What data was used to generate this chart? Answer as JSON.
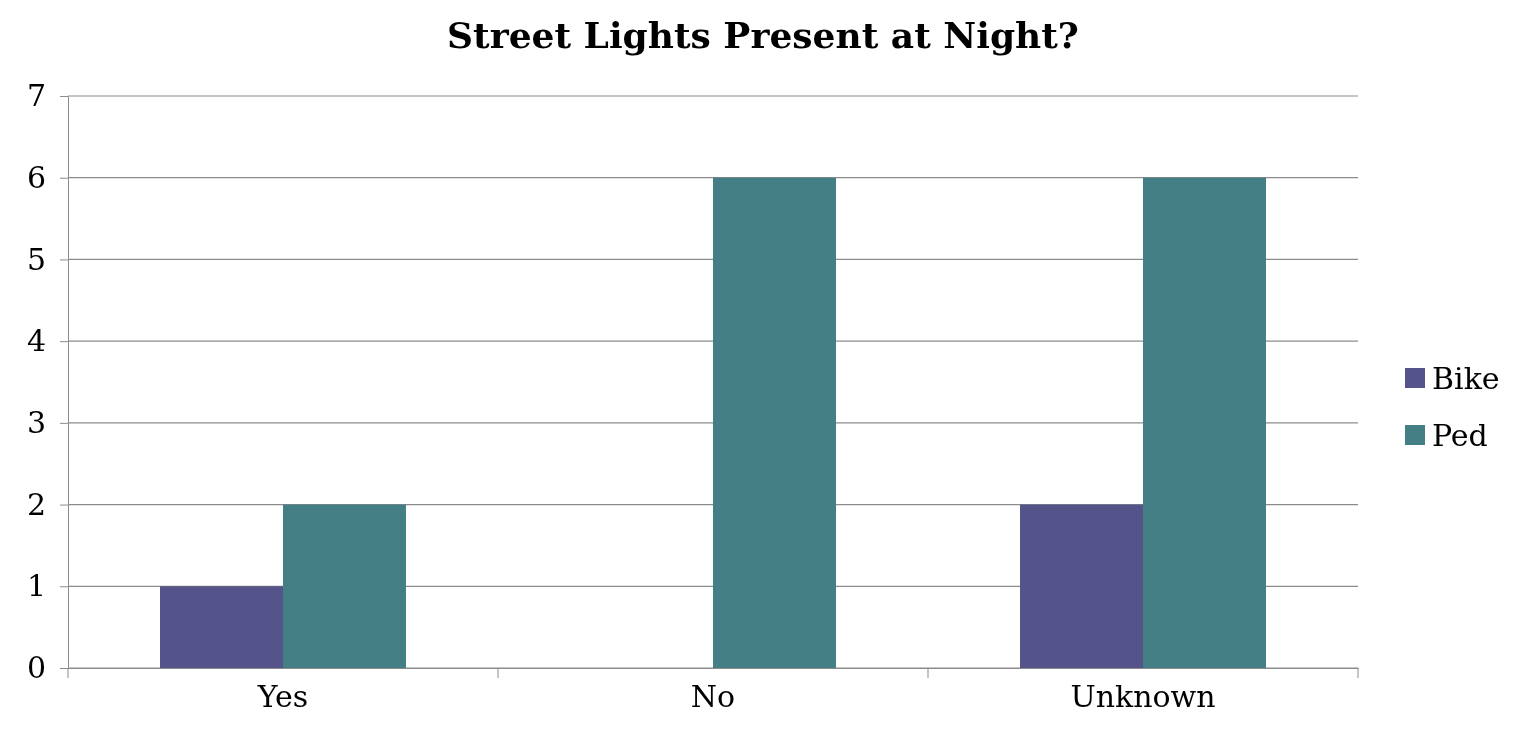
{
  "chart_data": {
    "type": "bar",
    "title": "Street Lights Present at Night?",
    "categories": [
      "Yes",
      "No",
      "Unknown"
    ],
    "series": [
      {
        "name": "Bike",
        "color": "#55548a",
        "values": [
          1,
          0,
          2
        ]
      },
      {
        "name": "Ped",
        "color": "#437f84",
        "values": [
          2,
          6,
          6
        ]
      }
    ],
    "ylim": [
      0,
      7
    ],
    "yticks": [
      0,
      1,
      2,
      3,
      4,
      5,
      6,
      7
    ],
    "grid": "y",
    "legend": "right"
  }
}
